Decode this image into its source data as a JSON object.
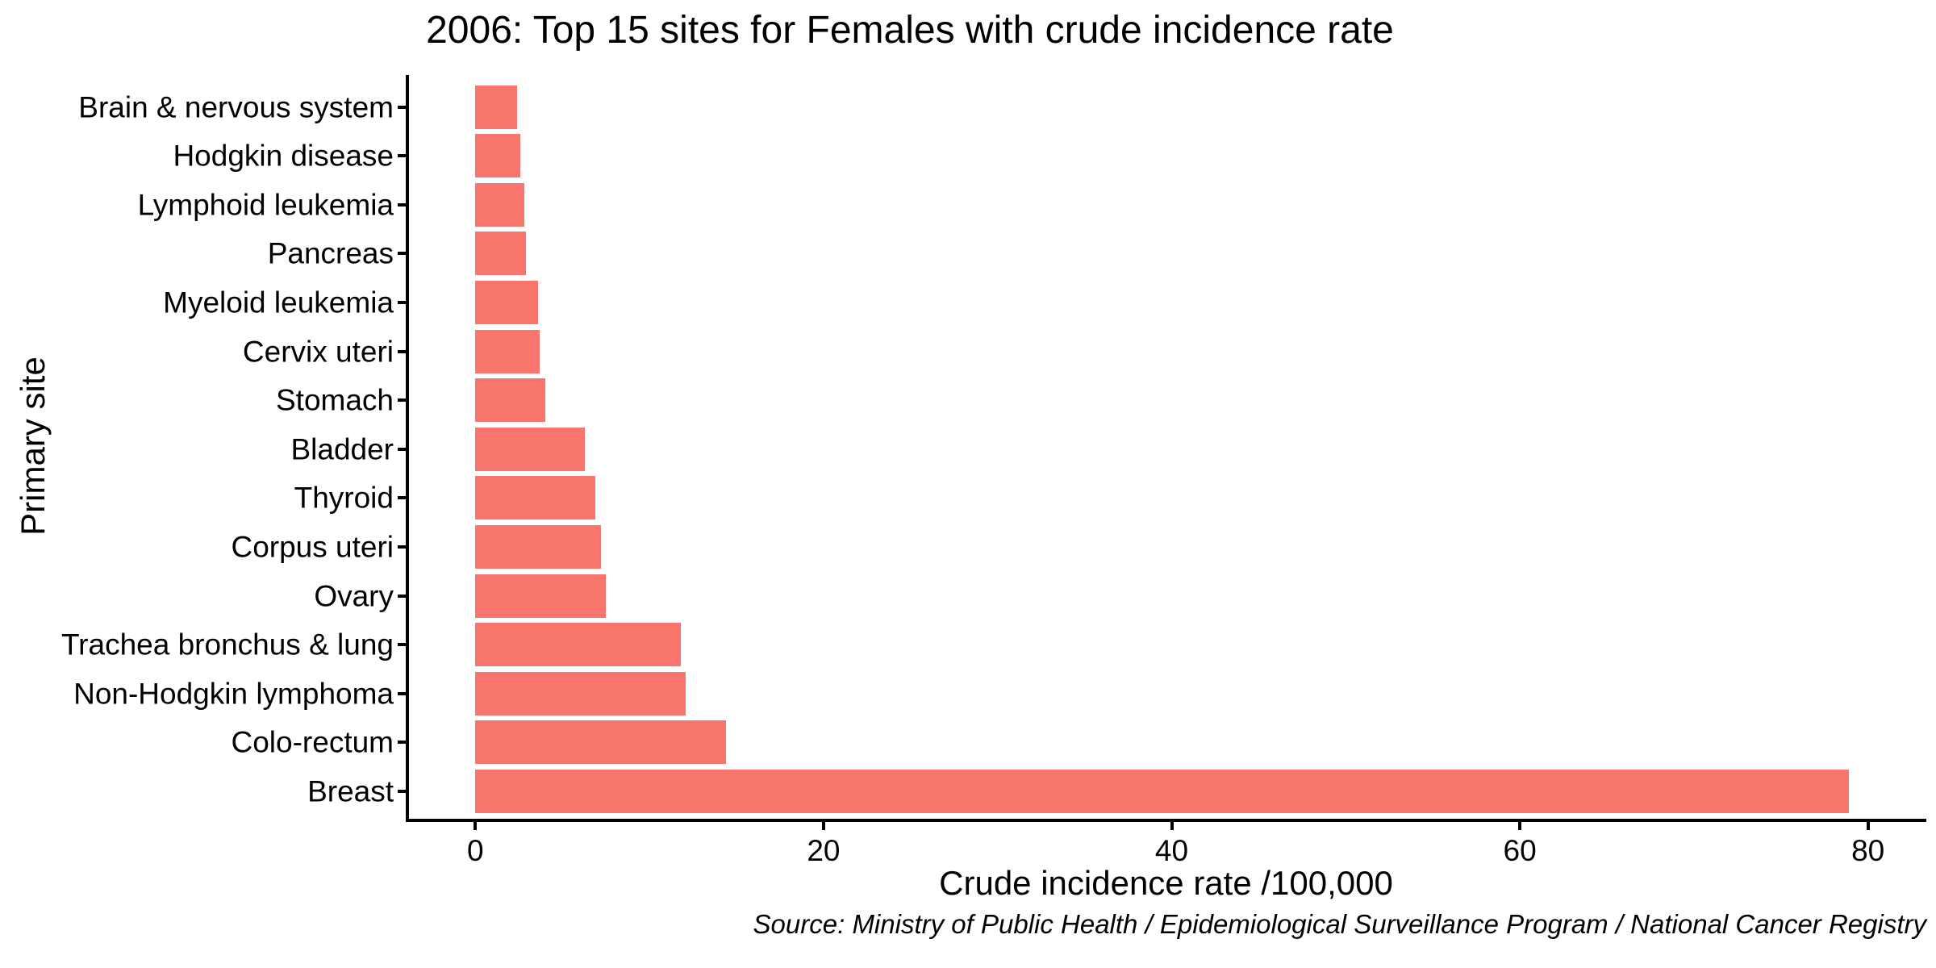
{
  "chart_data": {
    "type": "bar",
    "orientation": "horizontal",
    "title": "2006: Top 15 sites for Females with crude incidence rate",
    "xlabel": "Crude incidence rate /100,000",
    "ylabel": "Primary site",
    "source": "Source: Ministry of Public Health / Epidemiological Surveillance Program / National Cancer Registry",
    "categories": [
      "Brain & nervous system",
      "Hodgkin disease",
      "Lymphoid leukemia",
      "Pancreas",
      "Myeloid leukemia",
      "Cervix uteri",
      "Stomach",
      "Bladder",
      "Thyroid",
      "Corpus uteri",
      "Ovary",
      "Trachea bronchus & lung",
      "Non-Hodgkin lymphoma",
      "Colo-rectum",
      "Breast"
    ],
    "values": [
      2.4,
      2.6,
      2.8,
      2.9,
      3.6,
      3.7,
      4.0,
      6.3,
      6.9,
      7.2,
      7.5,
      11.8,
      12.1,
      14.4,
      78.9
    ],
    "categories_order": "top-to-bottom ascending, largest (Breast) at bottom",
    "x_ticks": [
      0,
      20,
      40,
      60,
      80
    ],
    "xlim": [
      0,
      80
    ],
    "grid": false,
    "legend_position": "none",
    "bar_color": "#F8766D",
    "axis_color": "#000000",
    "text_color": "#000000",
    "background_color": "#FFFFFF"
  }
}
